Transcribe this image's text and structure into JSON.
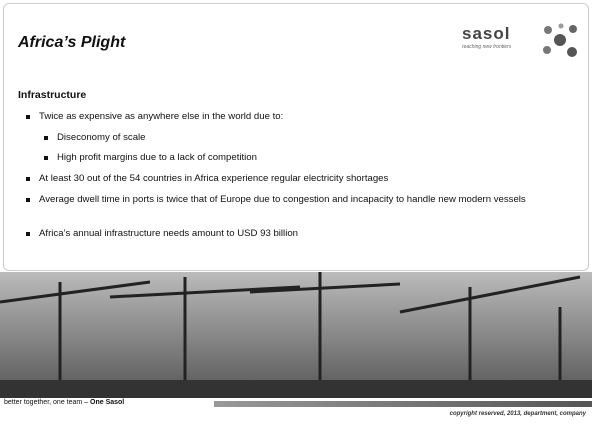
{
  "header": {
    "title": "Africa’s Plight",
    "logo": "sasol",
    "tagline": "reaching new frontiers"
  },
  "section": {
    "heading": "Infrastructure",
    "bullets": [
      {
        "text": "Twice as expensive as anywhere else in the world due to:",
        "sub": [
          "Diseconomy of scale",
          "High profit margins due to a lack of competition"
        ]
      },
      {
        "text": "At least 30 out of the 54 countries in Africa experience regular electricity shortages"
      },
      {
        "text": "Average dwell time in ports is twice that of Europe due to congestion and incapacity to handle new modern vessels"
      },
      {
        "text": "Africa’s annual infrastructure needs amount to USD 93 billion"
      }
    ]
  },
  "footer": {
    "tagline": "better together, one team –",
    "tagline_bold": "One Sasol",
    "copyright": "copyright reserved, 2013, department, company"
  }
}
